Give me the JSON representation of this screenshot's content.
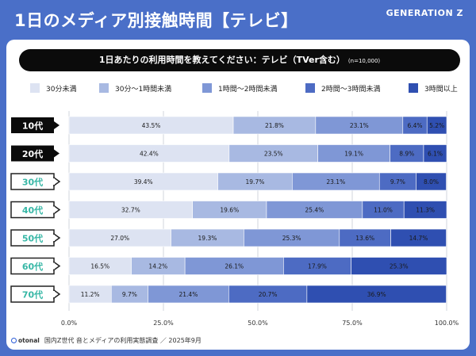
{
  "header": {
    "title": "1日のメディア別接触時間【テレビ】",
    "brand": "GENERATION Z"
  },
  "question": {
    "text": "1日あたりの利用時間を教えてください：テレビ（TVer含む）",
    "sample": "(n=10,000)"
  },
  "footer": {
    "logo": "otonal",
    "source": "国内Z世代 音とメディアの利用実態調査 ／ 2025年9月"
  },
  "colors": {
    "background": "#4a6fc8",
    "series": [
      "#dde3f2",
      "#a8b9e2",
      "#7f97d6",
      "#4d6bc3",
      "#2f4fb1"
    ],
    "label_dark": "#0b0b0b",
    "label_teal_border": "#37b7a6"
  },
  "chart_data": {
    "type": "bar",
    "orientation": "horizontal",
    "stacked": true,
    "categories": [
      "10代",
      "20代",
      "30代",
      "40代",
      "50代",
      "60代",
      "70代"
    ],
    "category_style": [
      "dark",
      "dark",
      "light",
      "light",
      "light",
      "light",
      "light"
    ],
    "series": [
      {
        "name": "30分未満",
        "values": [
          43.5,
          42.4,
          39.4,
          32.7,
          27.0,
          16.5,
          11.2
        ],
        "labels": [
          "43.5%",
          "42.4%",
          "39.4%",
          "32.7%",
          "27.0%",
          "16.5%",
          "11.2%"
        ]
      },
      {
        "name": "30分〜1時間未満",
        "values": [
          21.8,
          23.5,
          19.7,
          19.6,
          19.3,
          14.2,
          9.7
        ],
        "labels": [
          "21.8%",
          "23.5%",
          "19.7%",
          "19.6%",
          "19.3%",
          "14.2%",
          "9.7%"
        ]
      },
      {
        "name": "1時間〜2時間未満",
        "values": [
          23.1,
          19.1,
          23.1,
          25.4,
          25.3,
          26.1,
          21.4
        ],
        "labels": [
          "23.1%",
          "19.1%",
          "23.1%",
          "25.4%",
          "25.3%",
          "26.1%",
          "21.4%"
        ]
      },
      {
        "name": "2時間〜3時間未満",
        "values": [
          6.4,
          8.9,
          9.7,
          11.0,
          13.6,
          17.9,
          20.7
        ],
        "labels": [
          "6.4%",
          "8.9%",
          "9.7%",
          "11.0%",
          "13.6%",
          "17.9%",
          "20.7%"
        ]
      },
      {
        "name": "3時間以上",
        "values": [
          5.2,
          6.1,
          8.0,
          11.3,
          14.7,
          25.3,
          36.9
        ],
        "labels": [
          "5.2%",
          "6.1%",
          "8.0%",
          "11.3%",
          "14.7%",
          "25.3%",
          "36.9%"
        ]
      }
    ],
    "xlim": [
      0,
      100
    ],
    "xticks": [
      0,
      25,
      50,
      75,
      100
    ],
    "xtick_labels": [
      "0.0%",
      "25.0%",
      "50.0%",
      "75.0%",
      "100.0%"
    ],
    "grid": true,
    "legend_position": "top"
  }
}
